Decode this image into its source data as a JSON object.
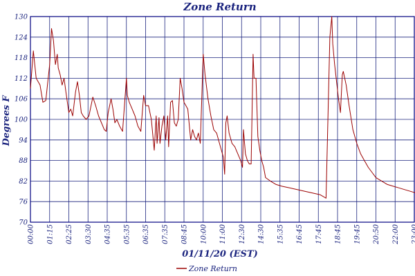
{
  "chart_data": {
    "type": "line",
    "title": "Zone Return",
    "xlabel": "01/11/20 (EST)",
    "ylabel": "Degrees F",
    "ylim": [
      70,
      130
    ],
    "yticks": [
      70,
      76,
      82,
      88,
      94,
      100,
      106,
      112,
      118,
      124,
      130
    ],
    "xticks": [
      "00:00",
      "01:15",
      "02:25",
      "03:30",
      "04:35",
      "05:35",
      "06:35",
      "07:35",
      "08:45",
      "10:00",
      "11:00",
      "12:30",
      "14:30",
      "15:35",
      "16:45",
      "17:45",
      "18:45",
      "19:45",
      "20:50",
      "22:00",
      "23:00"
    ],
    "grid": true,
    "legend_position": "bottom-center",
    "colors": {
      "series": "#9b0000",
      "grid": "#1a237e",
      "text": "#1a237e",
      "axis": "#000080"
    },
    "series": [
      {
        "name": "Zone Return",
        "points": [
          [
            0.0,
            109
          ],
          [
            0.15,
            120
          ],
          [
            0.3,
            112
          ],
          [
            0.5,
            110
          ],
          [
            0.65,
            105
          ],
          [
            0.8,
            105.5
          ],
          [
            1.0,
            116
          ],
          [
            1.1,
            126.5
          ],
          [
            1.2,
            123
          ],
          [
            1.3,
            116
          ],
          [
            1.4,
            119
          ],
          [
            1.45,
            115
          ],
          [
            1.55,
            113
          ],
          [
            1.65,
            110
          ],
          [
            1.75,
            112
          ],
          [
            1.85,
            108
          ],
          [
            2.0,
            102
          ],
          [
            2.1,
            103
          ],
          [
            2.2,
            101
          ],
          [
            2.35,
            108
          ],
          [
            2.45,
            111
          ],
          [
            2.55,
            107
          ],
          [
            2.65,
            102
          ],
          [
            2.75,
            101
          ],
          [
            2.9,
            100
          ],
          [
            3.05,
            101
          ],
          [
            3.25,
            106.5
          ],
          [
            3.4,
            104
          ],
          [
            3.55,
            101
          ],
          [
            3.7,
            99
          ],
          [
            3.85,
            97
          ],
          [
            3.95,
            96.5
          ],
          [
            4.05,
            102
          ],
          [
            4.2,
            106
          ],
          [
            4.3,
            103
          ],
          [
            4.4,
            99
          ],
          [
            4.5,
            100
          ],
          [
            4.65,
            98
          ],
          [
            4.8,
            96.5
          ],
          [
            5.0,
            112
          ],
          [
            5.05,
            107
          ],
          [
            5.15,
            105
          ],
          [
            5.3,
            103
          ],
          [
            5.45,
            101
          ],
          [
            5.6,
            98
          ],
          [
            5.75,
            96.5
          ],
          [
            5.9,
            107
          ],
          [
            6.0,
            104
          ],
          [
            6.15,
            104
          ],
          [
            6.3,
            100
          ],
          [
            6.45,
            91
          ],
          [
            6.55,
            101
          ],
          [
            6.6,
            93
          ],
          [
            6.7,
            100.5
          ],
          [
            6.75,
            93
          ],
          [
            6.85,
            98
          ],
          [
            6.95,
            101
          ],
          [
            7.05,
            94
          ],
          [
            7.15,
            101
          ],
          [
            7.2,
            92
          ],
          [
            7.3,
            105
          ],
          [
            7.4,
            105.5
          ],
          [
            7.5,
            99
          ],
          [
            7.6,
            98
          ],
          [
            7.7,
            100
          ],
          [
            7.8,
            112
          ],
          [
            7.9,
            109
          ],
          [
            8.0,
            105
          ],
          [
            8.1,
            104
          ],
          [
            8.2,
            103
          ],
          [
            8.3,
            97
          ],
          [
            8.35,
            94
          ],
          [
            8.45,
            97
          ],
          [
            8.55,
            95
          ],
          [
            8.65,
            94
          ],
          [
            8.75,
            96
          ],
          [
            8.85,
            93
          ],
          [
            9.0,
            119
          ],
          [
            9.1,
            113
          ],
          [
            9.25,
            106
          ],
          [
            9.4,
            101
          ],
          [
            9.55,
            97
          ],
          [
            9.7,
            96
          ],
          [
            9.85,
            93
          ],
          [
            9.95,
            91
          ],
          [
            10.05,
            89
          ],
          [
            10.12,
            84
          ],
          [
            10.18,
            99
          ],
          [
            10.25,
            101
          ],
          [
            10.35,
            96
          ],
          [
            10.5,
            93
          ],
          [
            10.65,
            92
          ],
          [
            10.8,
            90
          ],
          [
            10.95,
            88
          ],
          [
            11.05,
            86
          ],
          [
            11.1,
            97
          ],
          [
            11.2,
            90
          ],
          [
            11.3,
            88
          ],
          [
            11.4,
            87
          ],
          [
            11.5,
            87
          ],
          [
            11.6,
            119
          ],
          [
            11.65,
            112
          ],
          [
            11.75,
            112
          ],
          [
            11.85,
            95
          ],
          [
            11.95,
            91
          ],
          [
            12.05,
            88
          ],
          [
            12.15,
            86
          ],
          [
            12.25,
            83
          ],
          [
            12.5,
            82
          ],
          [
            12.8,
            81
          ],
          [
            13.1,
            80.5
          ],
          [
            13.5,
            80
          ],
          [
            13.9,
            79.5
          ],
          [
            14.3,
            79
          ],
          [
            14.7,
            78.5
          ],
          [
            15.1,
            78
          ],
          [
            15.4,
            77
          ],
          [
            15.6,
            124
          ],
          [
            15.7,
            130
          ],
          [
            15.75,
            122
          ],
          [
            15.85,
            116
          ],
          [
            15.95,
            111
          ],
          [
            16.05,
            106
          ],
          [
            16.15,
            102
          ],
          [
            16.25,
            113
          ],
          [
            16.3,
            114
          ],
          [
            16.45,
            110
          ],
          [
            16.6,
            104
          ],
          [
            16.8,
            97
          ],
          [
            17.0,
            93
          ],
          [
            17.2,
            90
          ],
          [
            17.4,
            88
          ],
          [
            17.6,
            86
          ],
          [
            17.8,
            84.5
          ],
          [
            18.0,
            83
          ],
          [
            18.3,
            82
          ],
          [
            18.6,
            81
          ],
          [
            18.9,
            80.5
          ],
          [
            19.2,
            80
          ],
          [
            19.5,
            79.5
          ],
          [
            19.8,
            79
          ],
          [
            20.1,
            78.5
          ],
          [
            20.4,
            78.5
          ],
          [
            20.45,
            81
          ],
          [
            20.55,
            97
          ],
          [
            20.65,
            114
          ],
          [
            20.72,
            125
          ],
          [
            20.8,
            121
          ],
          [
            20.9,
            114
          ],
          [
            21.0,
            108
          ],
          [
            21.1,
            103
          ],
          [
            21.25,
            100
          ],
          [
            21.45,
            96
          ],
          [
            21.65,
            91
          ],
          [
            21.85,
            87
          ],
          [
            22.05,
            85
          ],
          [
            22.3,
            84
          ],
          [
            22.6,
            83
          ],
          [
            22.9,
            82
          ],
          [
            23.2,
            81
          ],
          [
            23.5,
            80
          ]
        ]
      }
    ]
  }
}
